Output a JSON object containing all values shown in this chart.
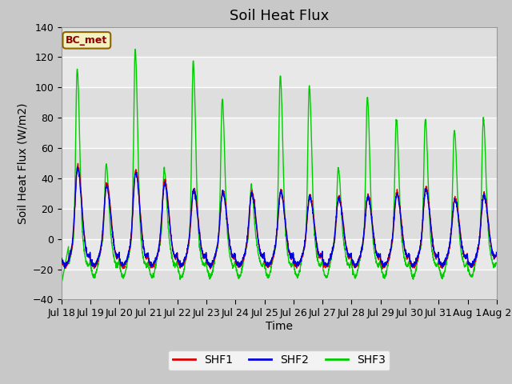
{
  "title": "Soil Heat Flux",
  "xlabel": "Time",
  "ylabel": "Soil Heat Flux (W/m2)",
  "ylim": [
    -40,
    140
  ],
  "yticks": [
    -40,
    -20,
    0,
    20,
    40,
    60,
    80,
    100,
    120,
    140
  ],
  "label_box": "BC_met",
  "legend_labels": [
    "SHF1",
    "SHF2",
    "SHF3"
  ],
  "shf1_color": "#dd0000",
  "shf2_color": "#0000dd",
  "shf3_color": "#00cc00",
  "x_tick_labels": [
    "Jul 18",
    "Jul 19",
    "Jul 20",
    "Jul 21",
    "Jul 22",
    "Jul 23",
    "Jul 24",
    "Jul 25",
    "Jul 26",
    "Jul 27",
    "Jul 28",
    "Jul 29",
    "Jul 30",
    "Jul 31",
    "Aug 1",
    "Aug 2"
  ],
  "title_fontsize": 13,
  "axis_label_fontsize": 10,
  "tick_fontsize": 9,
  "linewidth": 1.0,
  "shf3_peaks": [
    113,
    50,
    126,
    47,
    118,
    93,
    35,
    109,
    101,
    47,
    94,
    80,
    80,
    73,
    80
  ],
  "shf1_peaks": [
    50,
    38,
    47,
    40,
    35,
    33,
    32,
    33,
    30,
    29,
    30,
    32,
    35,
    28,
    31
  ],
  "shf2_peaks": [
    48,
    36,
    45,
    38,
    33,
    32,
    31,
    32,
    29,
    28,
    29,
    31,
    34,
    27,
    30
  ],
  "n_days": 15,
  "samples_per_hour": 6,
  "fig_bg": "#c8c8c8",
  "plot_bg": "#e8e8e8",
  "band_colors": [
    "#e0e0e0",
    "#d0d0d0"
  ]
}
